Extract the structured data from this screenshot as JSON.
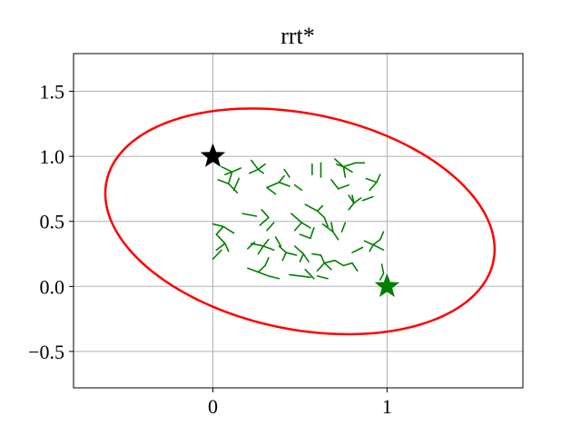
{
  "chart_data": {
    "type": "scatter",
    "title": "rrt*",
    "xlabel": "",
    "ylabel": "",
    "xlim": [
      -0.8,
      1.78
    ],
    "ylim": [
      -0.78,
      1.79
    ],
    "x_ticks": [
      0,
      1
    ],
    "x_tick_labels": [
      "0",
      "1"
    ],
    "y_ticks": [
      -0.5,
      0.0,
      0.5,
      1.0,
      1.5
    ],
    "y_tick_labels": [
      "−0.5",
      "0.0",
      "0.5",
      "1.0",
      "1.5"
    ],
    "grid": true,
    "legend": "none",
    "colors": {
      "tree": "#008000",
      "ellipse": "#ff0000",
      "start": "#000000",
      "goal": "#008000",
      "grid": "#b0b0b0",
      "axes": "#000000"
    },
    "start": {
      "x": 0.0,
      "y": 1.0
    },
    "goal": {
      "x": 1.0,
      "y": 0.0
    },
    "ellipse": {
      "cx": 0.5,
      "cy": 0.5,
      "semi_major": 1.16,
      "semi_minor": 0.81,
      "rotation_deg": -22
    },
    "tree_edges": [
      [
        0.05,
        0.92,
        0.11,
        0.88
      ],
      [
        0.11,
        0.88,
        0.09,
        0.79
      ],
      [
        0.11,
        0.88,
        0.16,
        0.91
      ],
      [
        0.11,
        0.88,
        0.07,
        0.86
      ],
      [
        0.09,
        0.79,
        0.14,
        0.72
      ],
      [
        0.09,
        0.79,
        0.03,
        0.82
      ],
      [
        0.15,
        0.83,
        0.12,
        0.74
      ],
      [
        0.22,
        0.97,
        0.26,
        0.9
      ],
      [
        0.26,
        0.9,
        0.3,
        0.94
      ],
      [
        0.26,
        0.9,
        0.21,
        0.87
      ],
      [
        0.26,
        0.9,
        0.29,
        0.87
      ],
      [
        0.31,
        0.76,
        0.38,
        0.8
      ],
      [
        0.38,
        0.8,
        0.44,
        0.77
      ],
      [
        0.38,
        0.8,
        0.41,
        0.85
      ],
      [
        0.31,
        0.76,
        0.36,
        0.71
      ],
      [
        0.41,
        0.9,
        0.44,
        0.84
      ],
      [
        0.47,
        0.78,
        0.51,
        0.74
      ],
      [
        0.57,
        0.94,
        0.57,
        0.86
      ],
      [
        0.62,
        0.95,
        0.62,
        0.84
      ],
      [
        0.7,
        0.98,
        0.75,
        0.92
      ],
      [
        0.75,
        0.92,
        0.82,
        0.95
      ],
      [
        0.75,
        0.92,
        0.71,
        0.94
      ],
      [
        0.75,
        0.92,
        0.8,
        0.88
      ],
      [
        0.82,
        0.95,
        0.87,
        0.95
      ],
      [
        0.75,
        0.92,
        0.76,
        0.84
      ],
      [
        0.68,
        0.82,
        0.72,
        0.75
      ],
      [
        0.72,
        0.75,
        0.78,
        0.78
      ],
      [
        0.78,
        0.7,
        0.81,
        0.64
      ],
      [
        0.81,
        0.64,
        0.85,
        0.68
      ],
      [
        0.81,
        0.64,
        0.78,
        0.59
      ],
      [
        0.81,
        0.64,
        0.8,
        0.7
      ],
      [
        0.88,
        0.83,
        0.94,
        0.8
      ],
      [
        0.94,
        0.8,
        0.9,
        0.74
      ],
      [
        0.94,
        0.8,
        0.96,
        0.86
      ],
      [
        0.86,
        0.66,
        0.92,
        0.69
      ],
      [
        0.17,
        0.56,
        0.25,
        0.54
      ],
      [
        0.27,
        0.47,
        0.32,
        0.53
      ],
      [
        0.32,
        0.53,
        0.28,
        0.59
      ],
      [
        0.31,
        0.43,
        0.35,
        0.49
      ],
      [
        0.45,
        0.56,
        0.51,
        0.49
      ],
      [
        0.51,
        0.49,
        0.56,
        0.45
      ],
      [
        0.51,
        0.49,
        0.47,
        0.43
      ],
      [
        0.53,
        0.63,
        0.6,
        0.58
      ],
      [
        0.6,
        0.58,
        0.64,
        0.53
      ],
      [
        0.6,
        0.58,
        0.63,
        0.62
      ],
      [
        0.64,
        0.53,
        0.66,
        0.46
      ],
      [
        0.63,
        0.48,
        0.69,
        0.42
      ],
      [
        0.69,
        0.42,
        0.72,
        0.36
      ],
      [
        0.69,
        0.42,
        0.68,
        0.49
      ],
      [
        0.74,
        0.42,
        0.76,
        0.49
      ],
      [
        0.58,
        0.45,
        0.56,
        0.37
      ],
      [
        0.5,
        0.4,
        0.56,
        0.37
      ],
      [
        0.0,
        0.48,
        0.06,
        0.46
      ],
      [
        0.06,
        0.46,
        0.02,
        0.4
      ],
      [
        0.06,
        0.46,
        0.12,
        0.41
      ],
      [
        0.02,
        0.4,
        0.07,
        0.33
      ],
      [
        0.07,
        0.33,
        0.02,
        0.28
      ],
      [
        0.07,
        0.33,
        0.09,
        0.27
      ],
      [
        0.0,
        0.21,
        0.05,
        0.28
      ],
      [
        0.22,
        0.33,
        0.29,
        0.31
      ],
      [
        0.29,
        0.31,
        0.32,
        0.36
      ],
      [
        0.29,
        0.31,
        0.26,
        0.25
      ],
      [
        0.29,
        0.31,
        0.35,
        0.28
      ],
      [
        0.2,
        0.29,
        0.24,
        0.34
      ],
      [
        0.38,
        0.31,
        0.42,
        0.26
      ],
      [
        0.42,
        0.26,
        0.4,
        0.2
      ],
      [
        0.42,
        0.26,
        0.48,
        0.24
      ],
      [
        0.36,
        0.38,
        0.39,
        0.31
      ],
      [
        0.47,
        0.31,
        0.52,
        0.25
      ],
      [
        0.52,
        0.25,
        0.55,
        0.19
      ],
      [
        0.52,
        0.25,
        0.5,
        0.19
      ],
      [
        0.57,
        0.25,
        0.62,
        0.24
      ],
      [
        0.62,
        0.24,
        0.64,
        0.18
      ],
      [
        0.64,
        0.18,
        0.68,
        0.13
      ],
      [
        0.64,
        0.18,
        0.6,
        0.12
      ],
      [
        0.64,
        0.18,
        0.7,
        0.2
      ],
      [
        0.7,
        0.2,
        0.75,
        0.16
      ],
      [
        0.75,
        0.16,
        0.8,
        0.18
      ],
      [
        0.8,
        0.18,
        0.83,
        0.12
      ],
      [
        0.87,
        0.35,
        0.92,
        0.32
      ],
      [
        0.92,
        0.32,
        0.96,
        0.36
      ],
      [
        0.92,
        0.32,
        0.9,
        0.27
      ],
      [
        0.92,
        0.32,
        0.98,
        0.28
      ],
      [
        0.96,
        0.36,
        0.98,
        0.42
      ],
      [
        0.97,
        0.17,
        0.98,
        0.1
      ],
      [
        0.98,
        0.1,
        0.96,
        0.05
      ],
      [
        0.2,
        0.14,
        0.26,
        0.11
      ],
      [
        0.26,
        0.11,
        0.3,
        0.16
      ],
      [
        0.26,
        0.11,
        0.32,
        0.08
      ],
      [
        0.3,
        0.16,
        0.32,
        0.22
      ],
      [
        0.32,
        0.08,
        0.38,
        0.06
      ],
      [
        0.44,
        0.09,
        0.5,
        0.08
      ],
      [
        0.5,
        0.08,
        0.56,
        0.07
      ],
      [
        0.53,
        0.13,
        0.58,
        0.06
      ],
      [
        0.6,
        0.08,
        0.66,
        0.06
      ],
      [
        0.8,
        0.26,
        0.86,
        0.3
      ]
    ]
  }
}
